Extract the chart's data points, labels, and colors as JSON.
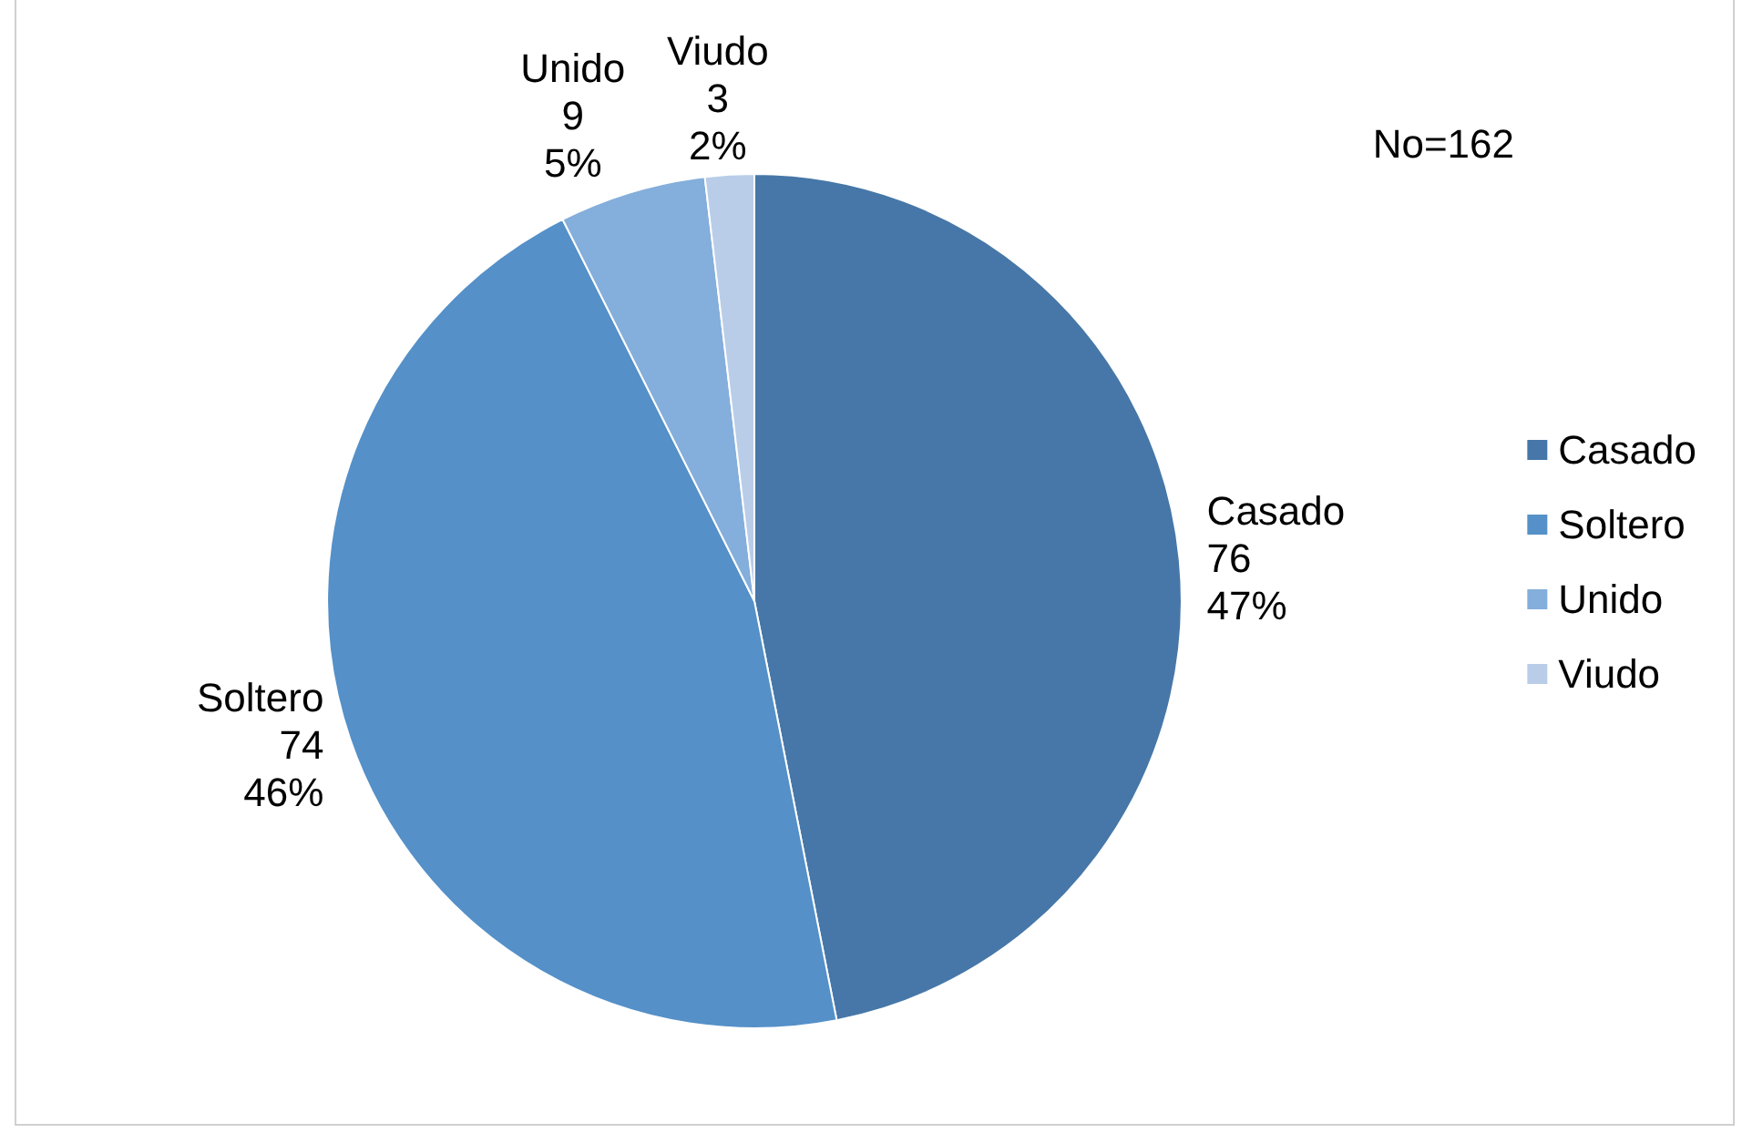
{
  "chart_data": {
    "type": "pie",
    "categories": [
      "Casado",
      "Soltero",
      "Unido",
      "Viudo"
    ],
    "values": [
      76,
      74,
      9,
      3
    ],
    "colors": [
      "#4677a8",
      "#5590c8",
      "#84aedb",
      "#b9cde8"
    ],
    "value_labels": [
      "76\n47%",
      "74\n46%",
      "9\n5%",
      "3\n2%"
    ],
    "annotations": [
      "No=162"
    ],
    "legend": "right"
  }
}
